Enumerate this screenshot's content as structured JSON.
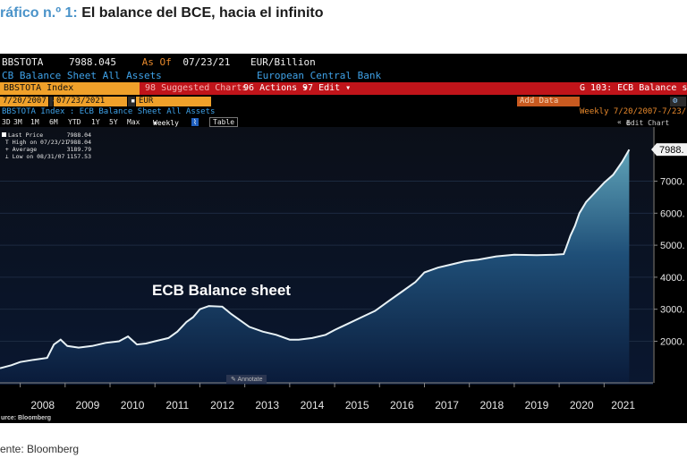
{
  "figure": {
    "lead": "ráfico n.º 1:",
    "title": "El balance del BCE, hacia el infinito",
    "source": "ente: Bloomberg"
  },
  "terminal": {
    "ticker": "BBSTOTA",
    "price": "7988.045",
    "as_of_label": "As Of",
    "as_of_date": "07/23/21",
    "unit": "EUR/Billion",
    "series_desc": "CB Balance Sheet All Assets",
    "bank": "European Central Bank",
    "index_field": "BBSTOTA Index",
    "suggested": "Suggested Charts",
    "actions": "Actions",
    "edit": "Edit",
    "page_id": "G 103: ECB Balance she",
    "date_from": "7/20/2007",
    "date_to": "07/23/2021",
    "currency": "EUR",
    "add_data": "Add Data",
    "subtitle": "BBSTOTA Index : ECB Balance Sheet All Assets",
    "range_label": "Weekly 7/20/2007-7/23/",
    "chart_menu": "Edit Chart",
    "periods": [
      "3D",
      "3M",
      "1M",
      "6M",
      "YTD",
      "1Y",
      "5Y",
      "Max"
    ],
    "frequency": "Weekly",
    "table_btn": "Table",
    "annotate": "Annotate",
    "source": "urce: Bloomberg",
    "legend": [
      {
        "label": "Last Price",
        "value": "7988.04"
      },
      {
        "label": "High on 07/23/21",
        "value": "7988.04"
      },
      {
        "label": "Average",
        "value": "3189.79"
      },
      {
        "label": "Low on 08/31/07",
        "value": "1157.53"
      }
    ]
  },
  "colors": {
    "orange": "#f0a12a",
    "red": "#c0141a",
    "cyan_text": "#3fa2e8",
    "area_top": "#5fa3b8",
    "area_bottom": "#0a1b3a"
  },
  "chart_data": {
    "type": "area",
    "annotation": "ECB Balance sheet",
    "last_value_label": "7988.",
    "x": [
      2007.55,
      2007.8,
      2008.0,
      2008.3,
      2008.6,
      2008.75,
      2008.9,
      2009.05,
      2009.3,
      2009.6,
      2009.9,
      2010.2,
      2010.4,
      2010.6,
      2010.8,
      2011.0,
      2011.3,
      2011.5,
      2011.7,
      2011.85,
      2012.0,
      2012.2,
      2012.5,
      2012.7,
      2012.9,
      2013.1,
      2013.4,
      2013.7,
      2014.0,
      2014.2,
      2014.5,
      2014.8,
      2015.0,
      2015.3,
      2015.6,
      2015.9,
      2016.2,
      2016.5,
      2016.8,
      2017.0,
      2017.3,
      2017.6,
      2017.9,
      2018.2,
      2018.6,
      2019.0,
      2019.5,
      2019.9,
      2020.1,
      2020.15,
      2020.25,
      2020.35,
      2020.45,
      2020.6,
      2020.8,
      2021.0,
      2021.2,
      2021.4,
      2021.56
    ],
    "values": [
      1157,
      1250,
      1350,
      1420,
      1480,
      1900,
      2050,
      1850,
      1800,
      1850,
      1950,
      2000,
      2150,
      1900,
      1930,
      2000,
      2100,
      2300,
      2600,
      2750,
      3000,
      3100,
      3080,
      2850,
      2650,
      2450,
      2300,
      2200,
      2050,
      2050,
      2100,
      2200,
      2350,
      2550,
      2750,
      2950,
      3250,
      3550,
      3850,
      4150,
      4300,
      4400,
      4500,
      4550,
      4650,
      4700,
      4690,
      4700,
      4720,
      4900,
      5300,
      5600,
      6000,
      6350,
      6650,
      6950,
      7200,
      7600,
      7988
    ],
    "x_ticks": [
      2008,
      2009,
      2010,
      2011,
      2012,
      2013,
      2014,
      2015,
      2016,
      2017,
      2018,
      2019,
      2020,
      2021
    ],
    "y_ticks": [
      2000,
      3000,
      4000,
      5000,
      6000,
      7000
    ],
    "xlim": [
      2007.55,
      2021.85
    ],
    "ylim": [
      700,
      8300
    ]
  }
}
